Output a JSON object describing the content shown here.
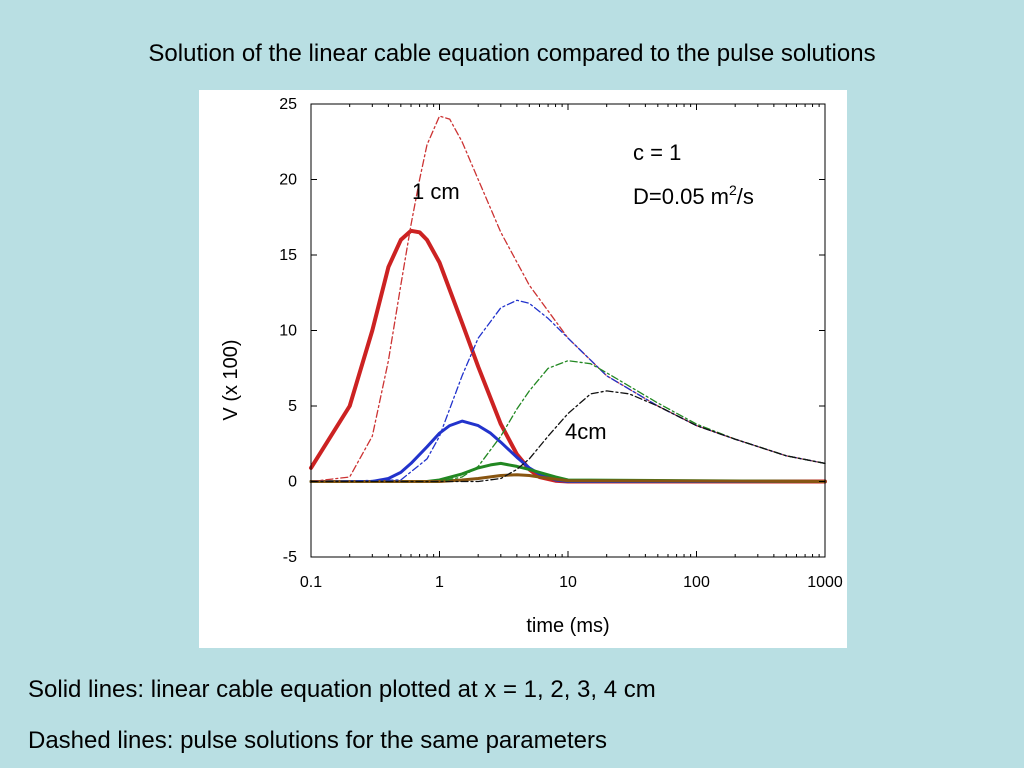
{
  "slide": {
    "title": "Solution of the linear cable equation compared to the pulse solutions",
    "note_solid": "Solid lines: linear cable equation plotted at x = 1, 2, 3, 4 cm",
    "note_dashed": "Dashed lines: pulse solutions for the same parameters"
  },
  "chart_data": {
    "type": "line",
    "xscale": "log",
    "xlabel": "time (ms)",
    "ylabel": "V (x 100)",
    "xlim": [
      0.1,
      1000
    ],
    "ylim": [
      -5,
      25
    ],
    "x_ticks": [
      "0.1",
      "1",
      "10",
      "100",
      "1000"
    ],
    "y_ticks": [
      "-5",
      "0",
      "5",
      "10",
      "15",
      "20",
      "25"
    ],
    "grid": false,
    "annotations": {
      "label_1cm": "1 cm",
      "label_4cm": "4cm",
      "param_c": "c = 1",
      "param_D_prefix": "D=0.05 m",
      "param_D_sup": "2",
      "param_D_suffix": "/s"
    },
    "series": [
      {
        "style": "solid",
        "color": "#cc2222",
        "x": [
          0.1,
          0.2,
          0.3,
          0.4,
          0.5,
          0.6,
          0.7,
          0.8,
          1,
          1.5,
          2,
          3,
          4,
          5,
          6,
          8,
          10,
          1000
        ],
        "y": [
          0.9,
          5,
          10,
          14.2,
          16,
          16.6,
          16.5,
          16,
          14.5,
          10.5,
          7.6,
          3.8,
          1.8,
          0.8,
          0.3,
          0.05,
          0,
          0
        ]
      },
      {
        "style": "solid",
        "color": "#2233cc",
        "x": [
          0.1,
          0.3,
          0.4,
          0.5,
          0.6,
          0.8,
          1,
          1.2,
          1.5,
          2,
          2.5,
          3,
          4,
          5,
          6,
          8,
          10,
          1000
        ],
        "y": [
          0,
          0,
          0.2,
          0.6,
          1.2,
          2.3,
          3.2,
          3.7,
          4.0,
          3.7,
          3.2,
          2.6,
          1.6,
          0.9,
          0.5,
          0.1,
          0,
          0
        ]
      },
      {
        "style": "solid",
        "color": "#228822",
        "x": [
          0.1,
          0.8,
          1,
          1.5,
          2,
          2.5,
          3,
          4,
          5,
          6,
          8,
          10,
          1000
        ],
        "y": [
          0,
          0,
          0.1,
          0.5,
          0.9,
          1.1,
          1.2,
          1.0,
          0.8,
          0.6,
          0.3,
          0.1,
          0
        ]
      },
      {
        "style": "solid",
        "color": "#885511",
        "x": [
          0.1,
          1,
          1.5,
          2,
          3,
          4,
          5,
          6,
          8,
          10,
          1000
        ],
        "y": [
          0,
          0,
          0.1,
          0.2,
          0.4,
          0.45,
          0.4,
          0.3,
          0.15,
          0.05,
          0
        ]
      },
      {
        "style": "dashed",
        "color": "#cc3333",
        "x": [
          0.1,
          0.2,
          0.3,
          0.4,
          0.5,
          0.6,
          0.7,
          0.8,
          1,
          1.2,
          1.5,
          2,
          3,
          5,
          10,
          20,
          50,
          100,
          200,
          500,
          1000
        ],
        "y": [
          0,
          0.3,
          3,
          8,
          13,
          17,
          20,
          22.3,
          24.2,
          24,
          22.5,
          20,
          16.5,
          13,
          9.5,
          7,
          5,
          3.7,
          2.8,
          1.7,
          1.2
        ]
      },
      {
        "style": "dashed",
        "color": "#2233cc",
        "x": [
          0.1,
          0.5,
          0.8,
          1,
          1.5,
          2,
          3,
          4,
          5,
          7,
          10,
          20,
          50,
          100,
          200,
          500,
          1000
        ],
        "y": [
          0,
          0.1,
          1.5,
          3,
          7,
          9.5,
          11.5,
          12,
          11.8,
          10.8,
          9.5,
          7,
          5,
          3.7,
          2.8,
          1.7,
          1.2
        ]
      },
      {
        "style": "dashed",
        "color": "#228822",
        "x": [
          0.1,
          1,
          1.5,
          2,
          3,
          4,
          5,
          7,
          10,
          15,
          20,
          50,
          100,
          200,
          500,
          1000
        ],
        "y": [
          0,
          0,
          0.3,
          1,
          3,
          4.8,
          6,
          7.5,
          8,
          7.8,
          7.2,
          5.2,
          3.8,
          2.8,
          1.7,
          1.2
        ]
      },
      {
        "style": "dashed",
        "color": "#111111",
        "x": [
          0.1,
          2,
          3,
          4,
          5,
          7,
          10,
          15,
          20,
          30,
          50,
          100,
          200,
          500,
          1000
        ],
        "y": [
          0,
          0,
          0.2,
          0.8,
          1.5,
          3,
          4.5,
          5.8,
          6,
          5.8,
          5,
          3.7,
          2.8,
          1.7,
          1.2
        ]
      }
    ]
  }
}
